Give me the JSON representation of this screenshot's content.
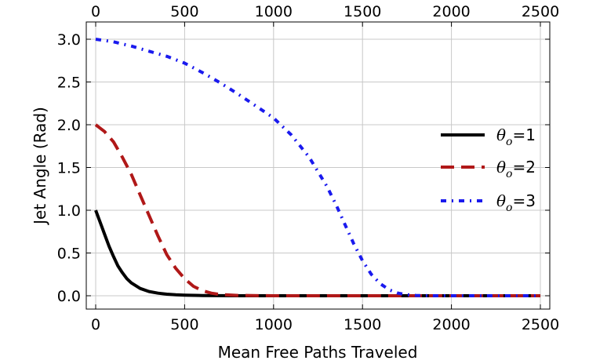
{
  "chart_data": {
    "type": "line",
    "title": "",
    "xlabel": "Mean Free Paths Traveled",
    "ylabel": "Jet Angle (Rad)",
    "xlim": [
      0,
      2500
    ],
    "ylim": [
      0,
      3.0
    ],
    "x_ticks": [
      0,
      500,
      1000,
      1500,
      2000,
      2500
    ],
    "x_tick_labels": [
      "0",
      "500",
      "1000",
      "1500",
      "2000",
      "2500"
    ],
    "top_tick_labels": [
      "0",
      "500",
      "1000",
      "1500",
      "2000",
      "2500"
    ],
    "y_ticks": [
      0,
      0.5,
      1.0,
      1.5,
      2.0,
      2.5,
      3.0
    ],
    "y_tick_labels": [
      "0.0",
      "0.5",
      "1.0",
      "1.5",
      "2.0",
      "2.5",
      "3.0"
    ],
    "grid": true,
    "legend_position": "right",
    "series": [
      {
        "name": "θo=1",
        "legend": {
          "symbol": "θ",
          "sub": "o",
          "rest": "=1"
        },
        "color": "#000000",
        "style": "solid",
        "x": [
          0,
          25,
          50,
          75,
          100,
          125,
          150,
          175,
          200,
          250,
          300,
          350,
          400,
          450,
          500,
          600,
          700,
          800,
          1000,
          1500,
          2000,
          2500
        ],
        "y": [
          1.0,
          0.86,
          0.72,
          0.58,
          0.46,
          0.35,
          0.27,
          0.2,
          0.15,
          0.085,
          0.05,
          0.03,
          0.018,
          0.011,
          0.007,
          0.003,
          0.001,
          0.0,
          0.0,
          0.0,
          0.0,
          0.0
        ]
      },
      {
        "name": "θo=2",
        "legend": {
          "symbol": "θ",
          "sub": "o",
          "rest": "=2"
        },
        "color": "#b01818",
        "style": "dashed",
        "x": [
          0,
          50,
          100,
          150,
          200,
          250,
          300,
          350,
          400,
          450,
          500,
          550,
          600,
          650,
          700,
          800,
          1000,
          1500,
          2000,
          2500
        ],
        "y": [
          2.0,
          1.92,
          1.8,
          1.62,
          1.42,
          1.18,
          0.94,
          0.7,
          0.48,
          0.32,
          0.2,
          0.11,
          0.06,
          0.03,
          0.015,
          0.004,
          0.0,
          0.0,
          0.0,
          0.0
        ]
      },
      {
        "name": "θo=3",
        "legend": {
          "symbol": "θ",
          "sub": "o",
          "rest": "=3"
        },
        "color": "#1a1aee",
        "style": "dashdot",
        "x": [
          0,
          100,
          200,
          300,
          400,
          500,
          600,
          700,
          800,
          900,
          1000,
          1100,
          1200,
          1300,
          1350,
          1400,
          1450,
          1500,
          1550,
          1600,
          1650,
          1700,
          1750,
          1800,
          1900,
          2000,
          2500
        ],
        "y": [
          3.0,
          2.97,
          2.92,
          2.86,
          2.8,
          2.72,
          2.61,
          2.49,
          2.36,
          2.22,
          2.08,
          1.88,
          1.62,
          1.28,
          1.07,
          0.84,
          0.61,
          0.41,
          0.25,
          0.14,
          0.07,
          0.03,
          0.012,
          0.004,
          0.0,
          0.0,
          0.0
        ]
      }
    ]
  }
}
